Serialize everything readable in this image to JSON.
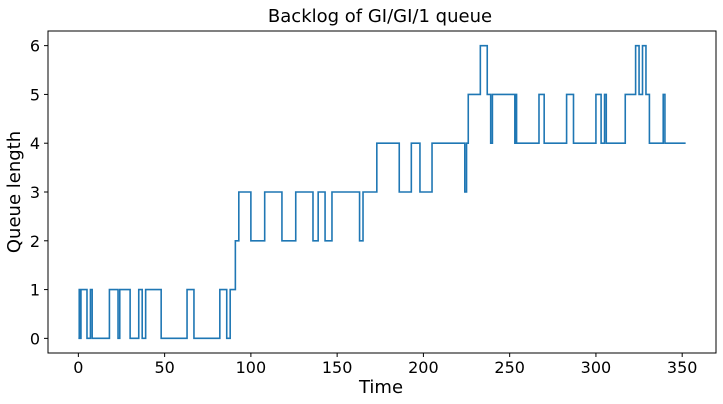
{
  "chart_data": {
    "type": "line",
    "title": "Backlog of GI/GI/1 queue",
    "xlabel": "Time",
    "ylabel": "Queue length",
    "xlim": [
      -17.6,
      369.6
    ],
    "ylim": [
      -0.3,
      6.3
    ],
    "xticks": [
      0,
      50,
      100,
      150,
      200,
      250,
      300,
      350
    ],
    "yticks": [
      0,
      1,
      2,
      3,
      4,
      5,
      6
    ],
    "grid": false,
    "line_color": "#1f77b4",
    "series": [
      {
        "step": "post",
        "x": [
          0,
          0.5,
          0.9,
          1.5,
          5,
          7,
          8,
          18,
          23,
          24,
          30,
          35,
          37,
          39,
          48,
          63,
          67,
          82,
          86,
          88,
          91,
          93,
          100,
          108,
          118,
          126,
          136,
          139,
          143,
          147,
          163,
          165,
          173,
          186,
          193,
          198,
          205,
          224,
          225,
          226,
          233,
          237,
          239,
          240,
          253,
          253.6,
          254,
          267,
          270,
          283,
          287,
          300,
          303,
          305,
          306,
          317,
          323,
          325,
          327,
          329,
          331,
          339,
          340,
          341,
          352
        ],
        "y": [
          0,
          1,
          0,
          1,
          0,
          1,
          0,
          1,
          0,
          1,
          0,
          1,
          0,
          1,
          0,
          1,
          0,
          1,
          0,
          1,
          2,
          3,
          2,
          3,
          2,
          3,
          2,
          3,
          2,
          3,
          2,
          3,
          4,
          3,
          4,
          3,
          4,
          3,
          4,
          5,
          6,
          5,
          4,
          5,
          4,
          5,
          4,
          5,
          4,
          5,
          4,
          5,
          4,
          5,
          4,
          5,
          6,
          5,
          6,
          5,
          4,
          5,
          4,
          4,
          4
        ]
      }
    ]
  }
}
